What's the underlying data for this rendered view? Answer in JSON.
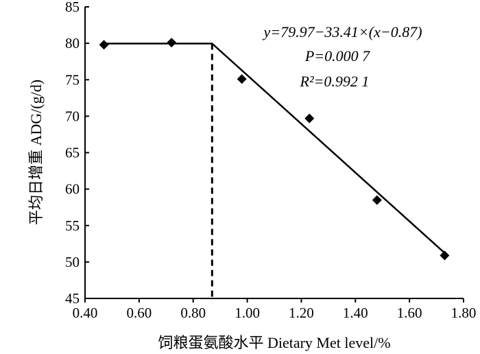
{
  "chart_data": {
    "type": "scatter",
    "xlabel": "饲粮蛋氨酸水平 Dietary Met level/%",
    "ylabel": "平均日增重 ADG/(g/d)",
    "xlim": [
      0.4,
      1.8
    ],
    "ylim": [
      45,
      85
    ],
    "x_ticks": [
      "0.40",
      "0.60",
      "0.80",
      "1.00",
      "1.20",
      "1.40",
      "1.60",
      "1.80"
    ],
    "y_ticks": [
      "45",
      "50",
      "55",
      "60",
      "65",
      "70",
      "75",
      "80",
      "85"
    ],
    "grid": false,
    "marker": "diamond",
    "points": [
      {
        "x": 0.47,
        "y": 79.8
      },
      {
        "x": 0.72,
        "y": 80.1
      },
      {
        "x": 0.98,
        "y": 75.1
      },
      {
        "x": 1.23,
        "y": 69.7
      },
      {
        "x": 1.48,
        "y": 58.5
      },
      {
        "x": 1.73,
        "y": 50.9
      }
    ],
    "fit": {
      "type": "broken-line",
      "plateau_y": 79.97,
      "slope": -33.41,
      "breakpoint_x": 0.87,
      "x_start": 0.47,
      "x_end": 1.73
    },
    "annotations": {
      "equation": "y=79.97−33.41×(x−0.87)",
      "p_value": "P=0.000 7",
      "r_squared": "R²=0.992 1"
    }
  }
}
